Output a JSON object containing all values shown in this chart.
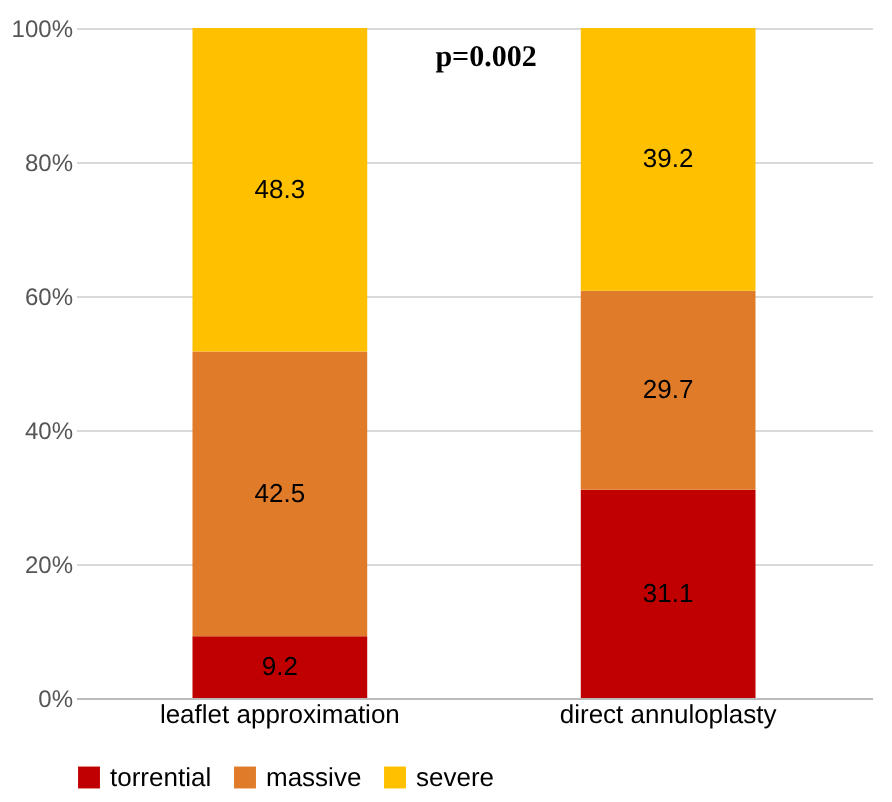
{
  "chart_data": {
    "type": "bar",
    "stacked": true,
    "categories": [
      "leaflet approximation",
      "direct annuloplasty"
    ],
    "series": [
      {
        "name": "torrential",
        "color": "#c00000",
        "values": [
          9.2,
          31.1
        ]
      },
      {
        "name": "massive",
        "color": "#e07b29",
        "values": [
          42.5,
          29.7
        ]
      },
      {
        "name": "severe",
        "color": "#ffc000",
        "values": [
          48.3,
          39.2
        ]
      }
    ],
    "ylim": [
      0,
      100
    ],
    "yticks": [
      {
        "value": 0,
        "label": "0%"
      },
      {
        "value": 20,
        "label": "20%"
      },
      {
        "value": 40,
        "label": "40%"
      },
      {
        "value": 60,
        "label": "60%"
      },
      {
        "value": 80,
        "label": "80%"
      },
      {
        "value": 100,
        "label": "100%"
      }
    ],
    "grid": "y",
    "legend": "bottom",
    "data_labels": true,
    "annotations": [
      "p=0.002"
    ]
  }
}
